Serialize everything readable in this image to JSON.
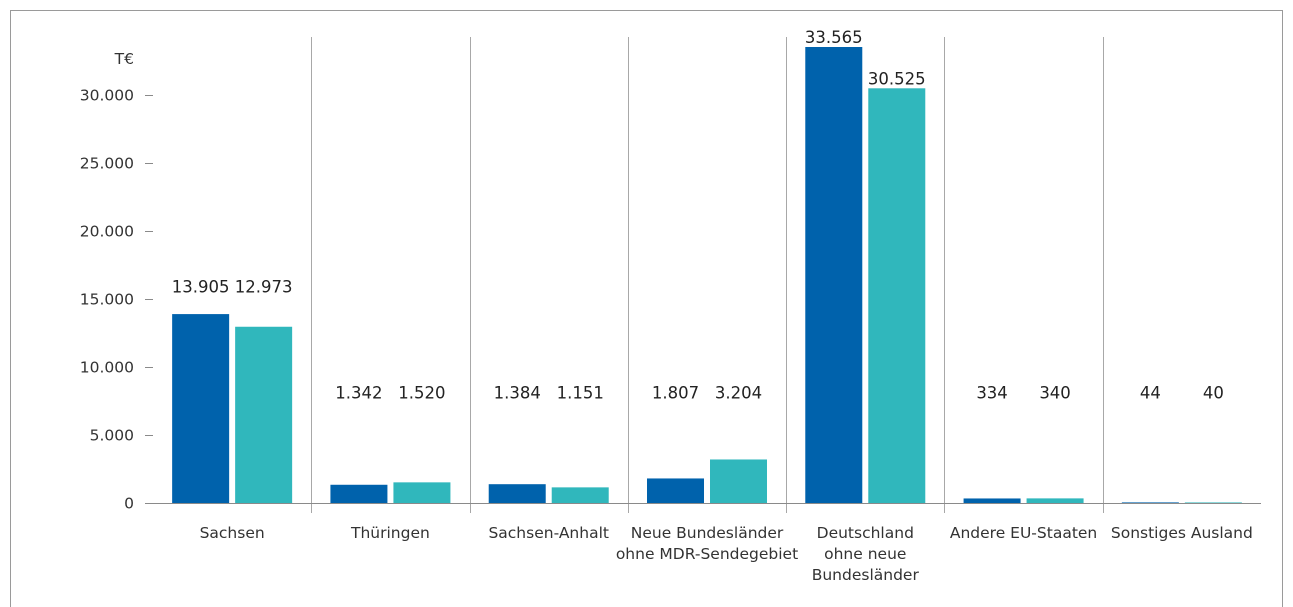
{
  "chart_data": {
    "type": "bar",
    "unit": "T€",
    "categories": [
      [
        "Sachsen"
      ],
      [
        "Thüringen"
      ],
      [
        "Sachsen-Anhalt"
      ],
      [
        "Neue Bundesländer",
        "ohne MDR-Sendegebiet"
      ],
      [
        "Deutschland",
        "ohne neue",
        "Bundesländer"
      ],
      [
        "Andere EU-Staaten"
      ],
      [
        "Sonstiges Ausland"
      ]
    ],
    "series": [
      {
        "values": [
          13905,
          1342,
          1384,
          1807,
          33565,
          334,
          44
        ],
        "labels": [
          "13.905",
          "1.342",
          "1.384",
          "1.807",
          "33.565",
          "334",
          "44"
        ],
        "color": "#0062AC"
      },
      {
        "values": [
          12973,
          1520,
          1151,
          3204,
          30525,
          340,
          40
        ],
        "labels": [
          "12.973",
          "1.520",
          "1.151",
          "3.204",
          "30.525",
          "340",
          "40"
        ],
        "color": "#30B7BC"
      }
    ],
    "yticks": [
      0,
      5000,
      10000,
      15000,
      20000,
      25000,
      30000
    ],
    "ytick_labels": [
      "0",
      "5.000",
      "10.000",
      "15.000",
      "20.000",
      "25.000",
      "30.000"
    ],
    "ylim": [
      0,
      33565
    ],
    "grid": "vertical category separators",
    "legend": "none"
  }
}
